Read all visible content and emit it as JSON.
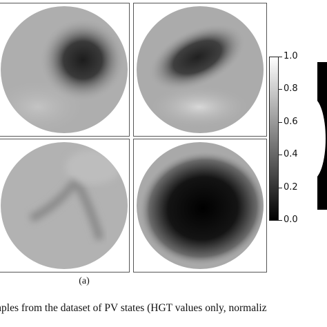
{
  "colorbar": {
    "ticks": [
      "1.0",
      "0.8",
      "0.6",
      "0.4",
      "0.2",
      "0.0"
    ]
  },
  "subfigure_label": "(a)",
  "caption": "mples from the dataset of PV states (HGT values only, normaliz"
}
